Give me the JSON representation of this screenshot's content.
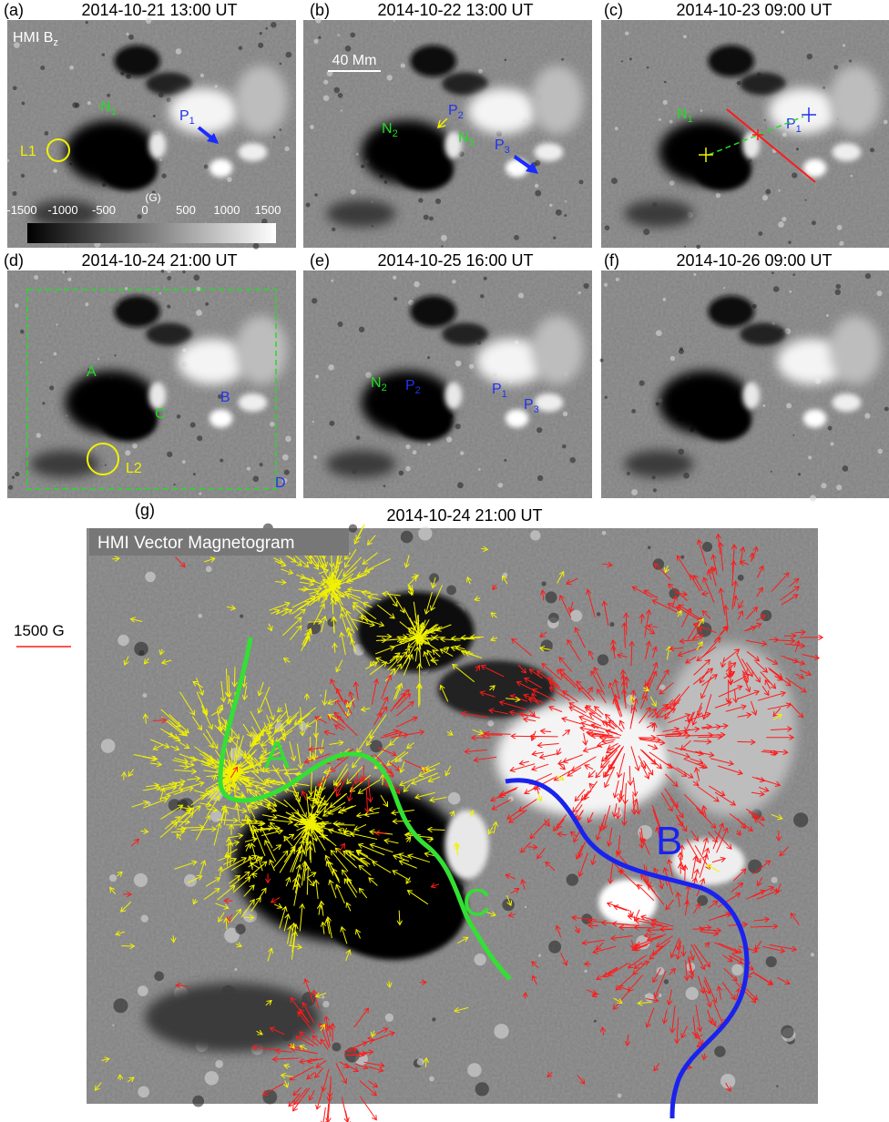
{
  "panels": [
    {
      "label": "(a)",
      "time": "2014-10-21 13:00 UT",
      "instrument": {
        "text": "HMI B",
        "sub": "z"
      },
      "annotations": [
        {
          "text": "N",
          "sub": "1"
        },
        {
          "text": "P",
          "sub": "1"
        },
        {
          "text": "L1"
        }
      ],
      "colorbar": {
        "unit": "(G)",
        "ticks": [
          "-1500",
          "-1000",
          "-500",
          "0",
          "500",
          "1000",
          "1500"
        ]
      }
    },
    {
      "label": "(b)",
      "time": "2014-10-22 13:00 UT",
      "scale": "40 Mm",
      "annotations": [
        {
          "text": "N",
          "sub": "2"
        },
        {
          "text": "P",
          "sub": "2"
        },
        {
          "text": "N",
          "sub": "3"
        },
        {
          "text": "P",
          "sub": "3"
        }
      ]
    },
    {
      "label": "(c)",
      "time": "2014-10-23 09:00 UT",
      "annotations": [
        {
          "text": "N",
          "sub": "1"
        },
        {
          "text": "P",
          "sub": "1"
        }
      ]
    },
    {
      "label": "(d)",
      "time": "2014-10-24 21:00 UT",
      "annotations": [
        {
          "text": "A"
        },
        {
          "text": "C"
        },
        {
          "text": "B"
        },
        {
          "text": "L2"
        },
        {
          "text": "D"
        }
      ]
    },
    {
      "label": "(e)",
      "time": "2014-10-25 16:00 UT",
      "annotations": [
        {
          "text": "N",
          "sub": "2"
        },
        {
          "text": "P",
          "sub": "2"
        },
        {
          "text": "P",
          "sub": "1"
        },
        {
          "text": "P",
          "sub": "3"
        }
      ]
    },
    {
      "label": "(f)",
      "time": "2014-10-26 09:00 UT"
    }
  ],
  "vector_panel": {
    "label": "(g)",
    "time": "2014-10-24  21:00 UT",
    "title": "HMI Vector Magnetogram",
    "scale": "1500 G",
    "labels": [
      "A",
      "C",
      "B"
    ]
  }
}
